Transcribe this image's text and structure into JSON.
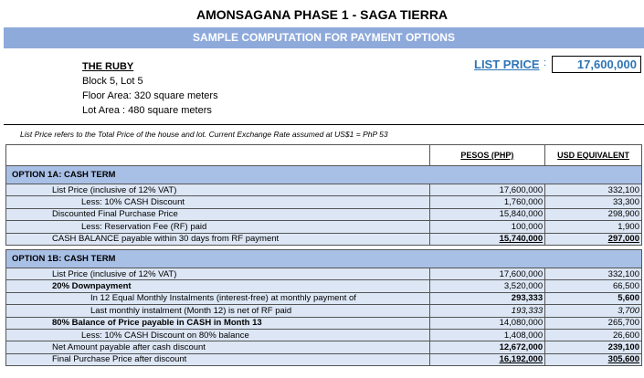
{
  "title": "AMONSAGANA PHASE 1 - SAGA TIERRA",
  "subtitle": "SAMPLE COMPUTATION FOR PAYMENT OPTIONS",
  "property": {
    "name": "THE RUBY",
    "block": "Block 5, Lot  5",
    "floor_area": "Floor Area: 320 square meters",
    "lot_area": "Lot Area : 480 square meters"
  },
  "list_price": {
    "label": "LIST PRICE",
    "colon": ":",
    "value": "17,600,000"
  },
  "note": "List Price refers to the Total Price of the house and lot. Current Exchange Rate assumed at US$1 = PhP 53",
  "columns": {
    "php": "PESOS (PHP)",
    "usd": "USD EQUIVALENT"
  },
  "option1a": {
    "title": "OPTION 1A: CASH TERM",
    "rows": [
      {
        "label": "List Price (inclusive of 12% VAT)",
        "php": "17,600,000",
        "usd": "332,100"
      },
      {
        "label": "Less: 10% CASH Discount",
        "php": "1,760,000",
        "usd": "33,300"
      },
      {
        "label": "Discounted Final Purchase Price",
        "php": "15,840,000",
        "usd": "298,900"
      },
      {
        "label": "Less: Reservation Fee (RF) paid",
        "php": "100,000",
        "usd": "1,900"
      },
      {
        "label": "CASH BALANCE payable within 30 days from RF payment",
        "php": "15,740,000",
        "usd": "297,000"
      }
    ]
  },
  "option1b": {
    "title": "OPTION 1B: CASH TERM",
    "rows": [
      {
        "label": "List Price (inclusive of 12% VAT)",
        "php": "17,600,000",
        "usd": "332,100"
      },
      {
        "label": "20% Downpayment",
        "php": "3,520,000",
        "usd": "66,500"
      },
      {
        "label": "In 12 Equal Monthly Instalments (interest-free) at monthly payment of",
        "php": "293,333",
        "usd": "5,600"
      },
      {
        "label": "Last monthly instalment (Month 12) is net of RF paid",
        "php": "193,333",
        "usd": "3,700"
      },
      {
        "label": "80% Balance of Price payable in CASH in Month 13",
        "php": "14,080,000",
        "usd": "265,700"
      },
      {
        "label": "Less:  10% CASH Discount on 80% balance",
        "php": "1,408,000",
        "usd": "26,600"
      },
      {
        "label": "Net Amount payable after cash discount",
        "php": "12,672,000",
        "usd": "239,100"
      },
      {
        "label": "Final Purchase Price after discount",
        "php": "16,192,000",
        "usd": "305,600"
      }
    ]
  }
}
